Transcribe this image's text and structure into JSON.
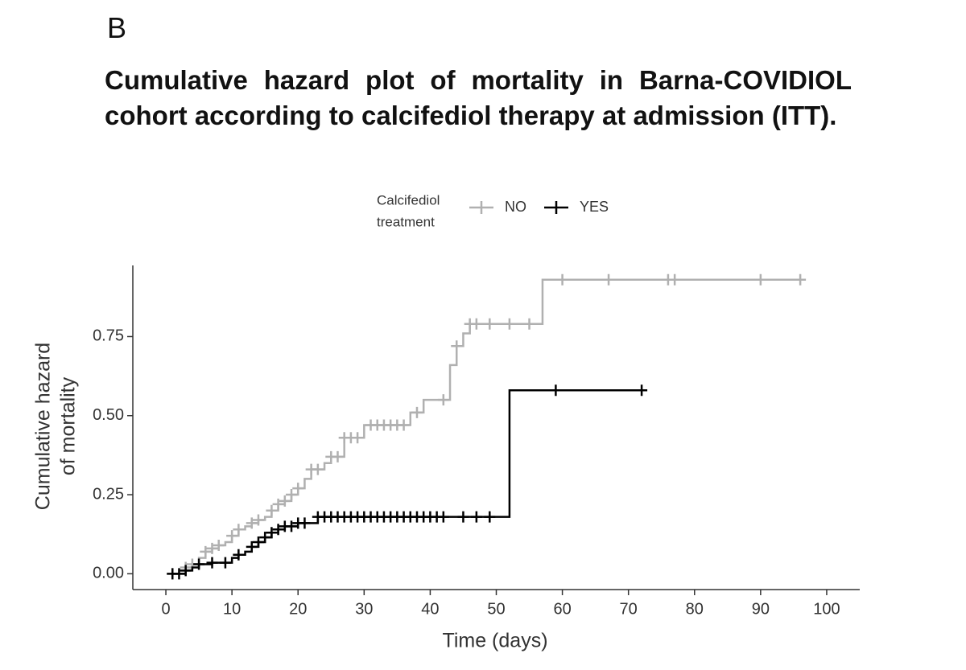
{
  "panel_label": "B",
  "chart_data": {
    "type": "step",
    "title": "Cumulative hazard plot of mortality in Barna-COVIDIOL cohort according to calcifediol therapy at admission (ITT).",
    "legend_title": [
      "Calcifediol",
      "treatment"
    ],
    "xlabel": "Time (days)",
    "ylabel": [
      "Cumulative hazard",
      "of mortality"
    ],
    "xlim": [
      -5,
      105
    ],
    "ylim": [
      -0.05,
      0.975
    ],
    "xticks": [
      0,
      10,
      20,
      30,
      40,
      50,
      60,
      70,
      80,
      90,
      100
    ],
    "yticks": [
      {
        "value": 0,
        "label": "0.00"
      },
      {
        "value": 0.25,
        "label": "0.25"
      },
      {
        "value": 0.5,
        "label": "0.50"
      },
      {
        "value": 0.75,
        "label": "0.75"
      }
    ],
    "series": [
      {
        "name": "NO",
        "color": "#b0b0b0",
        "x": [
          0.5,
          2,
          3,
          4,
          5,
          6,
          7,
          8,
          9,
          10,
          11,
          12,
          13,
          14,
          15,
          16,
          17,
          18,
          19,
          20,
          21,
          22,
          24,
          25,
          27,
          30,
          37,
          39,
          43,
          44,
          45,
          46,
          57,
          96
        ],
        "values": [
          0,
          0.01,
          0.02,
          0.03,
          0.05,
          0.07,
          0.08,
          0.09,
          0.1,
          0.12,
          0.14,
          0.15,
          0.16,
          0.17,
          0.18,
          0.2,
          0.22,
          0.23,
          0.25,
          0.27,
          0.3,
          0.33,
          0.35,
          0.37,
          0.43,
          0.47,
          0.51,
          0.55,
          0.66,
          0.72,
          0.76,
          0.79,
          0.93,
          0.93
        ],
        "censor_x": [
          1,
          3,
          4,
          6,
          7,
          8,
          10,
          11,
          13,
          14,
          16,
          17,
          18,
          19,
          20,
          22,
          23,
          25,
          26,
          27,
          28,
          29,
          31,
          32,
          33,
          34,
          35,
          36,
          38,
          42,
          44,
          46,
          47,
          49,
          52,
          55,
          60,
          67,
          76,
          77,
          90,
          96
        ],
        "censor_y": [
          0,
          0.02,
          0.03,
          0.07,
          0.08,
          0.09,
          0.12,
          0.14,
          0.16,
          0.17,
          0.2,
          0.22,
          0.23,
          0.25,
          0.27,
          0.33,
          0.33,
          0.37,
          0.37,
          0.43,
          0.43,
          0.43,
          0.47,
          0.47,
          0.47,
          0.47,
          0.47,
          0.47,
          0.51,
          0.55,
          0.72,
          0.79,
          0.79,
          0.79,
          0.79,
          0.79,
          0.93,
          0.93,
          0.93,
          0.93,
          0.93,
          0.93
        ]
      },
      {
        "name": "YES",
        "color": "#000000",
        "x": [
          1,
          3,
          4,
          5,
          7,
          10,
          11,
          12,
          13,
          14,
          15,
          16,
          17,
          18,
          20,
          23,
          52,
          72
        ],
        "values": [
          0,
          0.01,
          0.02,
          0.03,
          0.035,
          0.05,
          0.06,
          0.07,
          0.085,
          0.1,
          0.115,
          0.13,
          0.14,
          0.15,
          0.16,
          0.18,
          0.58,
          0.58
        ],
        "censor_x": [
          1,
          2,
          3,
          5,
          7,
          9,
          11,
          13,
          14,
          15,
          16,
          17,
          18,
          19,
          20,
          21,
          23,
          24,
          25,
          26,
          27,
          28,
          29,
          30,
          31,
          32,
          33,
          34,
          35,
          36,
          37,
          38,
          39,
          40,
          41,
          42,
          45,
          47,
          49,
          59,
          72
        ],
        "censor_y": [
          0,
          0,
          0.01,
          0.03,
          0.035,
          0.035,
          0.06,
          0.085,
          0.1,
          0.115,
          0.13,
          0.14,
          0.15,
          0.15,
          0.16,
          0.16,
          0.18,
          0.18,
          0.18,
          0.18,
          0.18,
          0.18,
          0.18,
          0.18,
          0.18,
          0.18,
          0.18,
          0.18,
          0.18,
          0.18,
          0.18,
          0.18,
          0.18,
          0.18,
          0.18,
          0.18,
          0.18,
          0.18,
          0.18,
          0.58,
          0.58
        ]
      }
    ]
  }
}
